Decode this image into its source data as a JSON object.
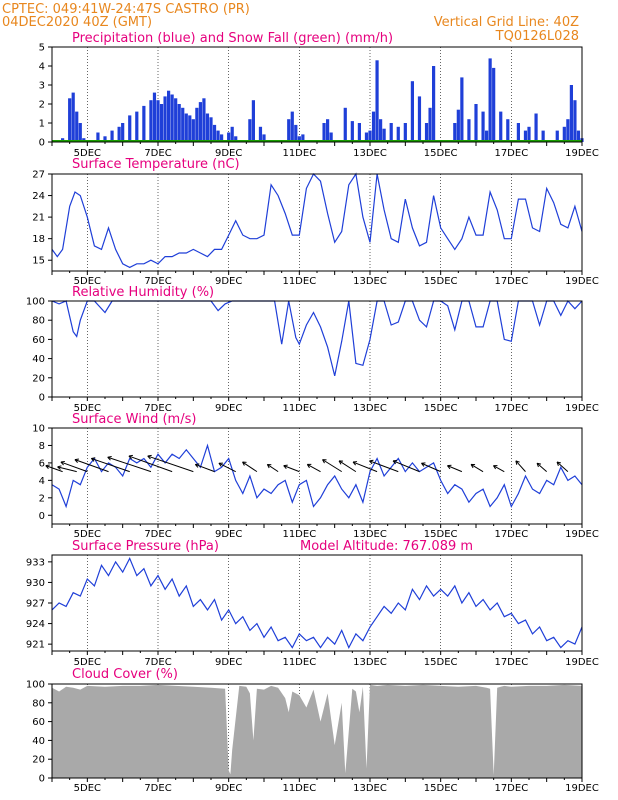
{
  "header": {
    "line1_left": "CPTEC:   049:41W-24:47S  CASTRO (PR)",
    "line2_left": "04DEC2020 40Z (GMT)",
    "line2_right": "Vertical Grid Line: 40Z",
    "line3_right": "TQ0126L028"
  },
  "colors": {
    "header": "#e8871e",
    "title": "#e6007e",
    "series": "#1f3fd8",
    "snow": "#1aa000",
    "cloud": "#a9a9a9",
    "arrow": "#000000"
  },
  "x_axis": {
    "range": [
      4.0,
      19.0
    ],
    "tick_labels": [
      {
        "x": 5,
        "label": "5DEC"
      },
      {
        "x": 7,
        "label": "7DEC"
      },
      {
        "x": 9,
        "label": "9DEC"
      },
      {
        "x": 11,
        "label": "11DEC"
      },
      {
        "x": 13,
        "label": "13DEC"
      },
      {
        "x": 15,
        "label": "15DEC"
      },
      {
        "x": 17,
        "label": "17DEC"
      },
      {
        "x": 19,
        "label": "19DEC"
      }
    ],
    "grid_days": [
      5,
      7,
      9,
      11,
      13,
      15,
      17
    ]
  },
  "chart_data": [
    {
      "id": "precip",
      "type": "bar",
      "title": "Precipitation (blue) and Snow Fall (green) (mm/h)",
      "ylim": [
        0,
        5
      ],
      "yticks": [
        0,
        1,
        2,
        3,
        4,
        5
      ],
      "x": [
        4.3,
        4.5,
        4.6,
        4.7,
        4.8,
        4.9,
        5.3,
        5.5,
        5.7,
        5.9,
        6.0,
        6.2,
        6.4,
        6.6,
        6.8,
        6.9,
        7.0,
        7.1,
        7.2,
        7.3,
        7.4,
        7.5,
        7.6,
        7.7,
        7.8,
        7.9,
        8.0,
        8.1,
        8.2,
        8.3,
        8.4,
        8.5,
        8.6,
        8.7,
        8.8,
        9.0,
        9.1,
        9.2,
        9.6,
        9.7,
        9.9,
        10.0,
        10.7,
        10.8,
        10.9,
        11.0,
        11.1,
        11.7,
        11.8,
        11.9,
        12.3,
        12.5,
        12.7,
        12.9,
        13.0,
        13.1,
        13.2,
        13.3,
        13.4,
        13.6,
        13.8,
        14.0,
        14.2,
        14.4,
        14.6,
        14.7,
        14.8,
        15.4,
        15.5,
        15.6,
        15.8,
        16.0,
        16.2,
        16.3,
        16.4,
        16.5,
        16.7,
        16.9,
        17.2,
        17.4,
        17.5,
        17.7,
        17.9,
        18.3,
        18.5,
        18.6,
        18.7,
        18.8,
        18.9,
        19.0
      ],
      "values": [
        0.2,
        2.3,
        2.6,
        1.6,
        1.0,
        0.2,
        0.5,
        0.3,
        0.6,
        0.8,
        1.0,
        1.4,
        1.6,
        1.9,
        2.2,
        2.6,
        2.2,
        2.0,
        2.4,
        2.7,
        2.5,
        2.3,
        2.0,
        1.8,
        1.5,
        1.4,
        1.2,
        1.8,
        2.1,
        2.3,
        1.5,
        1.3,
        0.9,
        0.6,
        0.4,
        0.5,
        0.8,
        0.3,
        1.2,
        2.2,
        0.8,
        0.4,
        1.2,
        1.6,
        0.9,
        0.3,
        0.4,
        1.0,
        1.2,
        0.5,
        1.8,
        1.1,
        1.0,
        0.5,
        0.6,
        1.6,
        4.3,
        1.2,
        0.7,
        1.0,
        0.8,
        1.0,
        3.2,
        2.4,
        1.0,
        1.8,
        4.0,
        1.0,
        1.7,
        3.4,
        1.2,
        2.0,
        1.6,
        0.6,
        4.4,
        3.9,
        1.6,
        1.2,
        1.0,
        0.6,
        0.8,
        1.5,
        0.6,
        0.6,
        0.8,
        1.2,
        3.0,
        2.2,
        0.6,
        0.2
      ],
      "snow_values": "all 0"
    },
    {
      "id": "temp",
      "type": "line",
      "title": "Surface Temperature (nC)",
      "ylim": [
        13.5,
        27
      ],
      "yticks": [
        15,
        18,
        21,
        24,
        27
      ],
      "x": [
        4.0,
        4.15,
        4.3,
        4.5,
        4.65,
        4.8,
        5.0,
        5.2,
        5.4,
        5.6,
        5.8,
        6.0,
        6.2,
        6.4,
        6.6,
        6.8,
        7.0,
        7.2,
        7.4,
        7.6,
        7.8,
        8.0,
        8.2,
        8.4,
        8.6,
        8.8,
        9.0,
        9.2,
        9.4,
        9.6,
        9.8,
        10.0,
        10.2,
        10.4,
        10.6,
        10.8,
        11.0,
        11.2,
        11.4,
        11.6,
        11.8,
        12.0,
        12.2,
        12.4,
        12.6,
        12.8,
        13.0,
        13.2,
        13.4,
        13.6,
        13.8,
        14.0,
        14.2,
        14.4,
        14.6,
        14.8,
        15.0,
        15.2,
        15.4,
        15.6,
        15.8,
        16.0,
        16.2,
        16.4,
        16.6,
        16.8,
        17.0,
        17.2,
        17.4,
        17.6,
        17.8,
        18.0,
        18.2,
        18.4,
        18.6,
        18.8,
        19.0
      ],
      "y": [
        16.5,
        15.5,
        16.5,
        22.5,
        24.5,
        24.0,
        21.0,
        17.0,
        16.5,
        19.5,
        16.5,
        14.5,
        14.0,
        14.5,
        14.5,
        15.0,
        14.5,
        15.5,
        15.5,
        16.0,
        16.0,
        16.5,
        16.0,
        15.5,
        16.5,
        16.5,
        18.5,
        20.5,
        18.5,
        18.0,
        18.0,
        18.5,
        25.5,
        24.0,
        21.5,
        18.5,
        18.5,
        25.0,
        27.0,
        26.0,
        21.5,
        17.5,
        19.0,
        25.5,
        27.0,
        21.0,
        17.5,
        27.0,
        22.0,
        18.0,
        17.5,
        23.5,
        19.5,
        17.0,
        17.5,
        24.0,
        19.5,
        18.0,
        16.5,
        18.0,
        21.0,
        18.5,
        18.5,
        24.5,
        22.0,
        18.0,
        18.0,
        23.5,
        23.5,
        19.5,
        19.0,
        25.0,
        23.0,
        20.0,
        19.5,
        22.5,
        19.0
      ]
    },
    {
      "id": "rh",
      "type": "line",
      "title": "Relative Humidity (%)",
      "ylim": [
        0,
        100
      ],
      "yticks": [
        0,
        20,
        40,
        60,
        80,
        100
      ],
      "x": [
        4.0,
        4.2,
        4.4,
        4.6,
        4.7,
        4.8,
        5.0,
        5.2,
        5.5,
        5.7,
        6.0,
        6.5,
        7.0,
        7.5,
        8.0,
        8.5,
        8.7,
        8.9,
        9.1,
        9.3,
        9.5,
        9.8,
        10.0,
        10.3,
        10.5,
        10.7,
        10.9,
        11.0,
        11.2,
        11.4,
        11.6,
        11.8,
        12.0,
        12.2,
        12.4,
        12.6,
        12.8,
        13.0,
        13.2,
        13.4,
        13.6,
        13.8,
        14.0,
        14.2,
        14.4,
        14.6,
        14.8,
        15.0,
        15.2,
        15.4,
        15.6,
        15.8,
        16.0,
        16.2,
        16.4,
        16.6,
        16.8,
        17.0,
        17.2,
        17.4,
        17.6,
        17.8,
        18.0,
        18.2,
        18.4,
        18.6,
        18.8,
        19.0
      ],
      "y": [
        100,
        97,
        100,
        68,
        63,
        80,
        100,
        100,
        88,
        100,
        100,
        100,
        100,
        100,
        100,
        100,
        90,
        97,
        100,
        100,
        100,
        100,
        100,
        100,
        55,
        100,
        62,
        55,
        75,
        88,
        73,
        52,
        22,
        58,
        100,
        35,
        33,
        60,
        100,
        100,
        75,
        78,
        100,
        100,
        80,
        73,
        100,
        100,
        95,
        70,
        100,
        100,
        73,
        73,
        100,
        100,
        60,
        58,
        100,
        100,
        100,
        75,
        100,
        100,
        85,
        100,
        92,
        100
      ]
    },
    {
      "id": "wind",
      "type": "line",
      "title": "Surface Wind (m/s)",
      "ylim": [
        -1,
        10
      ],
      "yticks": [
        0,
        2,
        4,
        6,
        8,
        10
      ],
      "x": [
        4.0,
        4.2,
        4.4,
        4.6,
        4.8,
        5.0,
        5.2,
        5.4,
        5.6,
        5.8,
        6.0,
        6.2,
        6.4,
        6.6,
        6.8,
        7.0,
        7.2,
        7.4,
        7.6,
        7.8,
        8.0,
        8.2,
        8.4,
        8.6,
        8.8,
        9.0,
        9.2,
        9.4,
        9.6,
        9.8,
        10.0,
        10.2,
        10.4,
        10.6,
        10.8,
        11.0,
        11.2,
        11.4,
        11.6,
        11.8,
        12.0,
        12.2,
        12.4,
        12.6,
        12.8,
        13.0,
        13.2,
        13.4,
        13.6,
        13.8,
        14.0,
        14.2,
        14.4,
        14.6,
        14.8,
        15.0,
        15.2,
        15.4,
        15.6,
        15.8,
        16.0,
        16.2,
        16.4,
        16.6,
        16.8,
        17.0,
        17.2,
        17.4,
        17.6,
        17.8,
        18.0,
        18.2,
        18.4,
        18.6,
        18.8,
        19.0
      ],
      "y": [
        3.5,
        3.0,
        1.0,
        4.0,
        3.5,
        5.5,
        6.5,
        5.0,
        6.0,
        5.5,
        4.5,
        6.5,
        6.0,
        6.5,
        5.5,
        7.0,
        6.0,
        7.0,
        6.5,
        7.5,
        6.5,
        5.5,
        8.0,
        5.0,
        5.5,
        6.5,
        4.0,
        2.5,
        4.5,
        2.0,
        3.0,
        2.5,
        3.5,
        4.0,
        1.5,
        3.5,
        4.0,
        1.0,
        2.0,
        3.5,
        4.5,
        3.0,
        2.0,
        3.5,
        1.5,
        5.0,
        6.5,
        4.5,
        5.5,
        6.5,
        5.0,
        6.0,
        5.0,
        5.5,
        6.0,
        4.0,
        2.5,
        3.5,
        3.0,
        1.5,
        2.5,
        3.0,
        1.0,
        2.0,
        3.5,
        1.0,
        2.5,
        4.5,
        3.0,
        2.5,
        4.0,
        3.5,
        5.5,
        4.0,
        4.5,
        3.5
      ],
      "vectors": [
        {
          "x": 4.3,
          "y": 5.0,
          "u": -1.4,
          "v": 0.5
        },
        {
          "x": 4.7,
          "y": 5.0,
          "u": -1.6,
          "v": 0.4
        },
        {
          "x": 5.0,
          "y": 5.0,
          "u": -2.2,
          "v": 0.8
        },
        {
          "x": 5.6,
          "y": 5.0,
          "u": -2.8,
          "v": 1.0
        },
        {
          "x": 6.2,
          "y": 5.0,
          "u": -3.2,
          "v": 1.1
        },
        {
          "x": 6.8,
          "y": 5.0,
          "u": -3.6,
          "v": 1.2
        },
        {
          "x": 7.4,
          "y": 5.0,
          "u": -3.6,
          "v": 1.3
        },
        {
          "x": 8.0,
          "y": 5.0,
          "u": -3.8,
          "v": 1.3
        },
        {
          "x": 8.6,
          "y": 5.0,
          "u": -1.6,
          "v": 0.6
        },
        {
          "x": 9.2,
          "y": 5.0,
          "u": -1.4,
          "v": 0.7
        },
        {
          "x": 9.8,
          "y": 5.0,
          "u": -1.2,
          "v": 0.8
        },
        {
          "x": 10.4,
          "y": 5.0,
          "u": -0.9,
          "v": 0.6
        },
        {
          "x": 11.0,
          "y": 5.0,
          "u": -1.3,
          "v": 0.5
        },
        {
          "x": 11.6,
          "y": 5.0,
          "u": -1.1,
          "v": 0.6
        },
        {
          "x": 12.2,
          "y": 5.0,
          "u": -1.6,
          "v": 1.0
        },
        {
          "x": 12.6,
          "y": 5.0,
          "u": -1.4,
          "v": 0.9
        },
        {
          "x": 13.2,
          "y": 5.0,
          "u": -2.0,
          "v": 0.8
        },
        {
          "x": 13.8,
          "y": 5.0,
          "u": -2.4,
          "v": 0.9
        },
        {
          "x": 14.4,
          "y": 5.0,
          "u": -2.2,
          "v": 0.9
        },
        {
          "x": 15.0,
          "y": 5.0,
          "u": -1.6,
          "v": 0.7
        },
        {
          "x": 15.6,
          "y": 5.0,
          "u": -1.2,
          "v": 0.5
        },
        {
          "x": 16.2,
          "y": 5.0,
          "u": -1.0,
          "v": 0.6
        },
        {
          "x": 16.8,
          "y": 5.0,
          "u": -0.9,
          "v": 0.5
        },
        {
          "x": 17.4,
          "y": 5.0,
          "u": -0.8,
          "v": 0.9
        },
        {
          "x": 18.0,
          "y": 5.0,
          "u": -0.8,
          "v": 0.7
        },
        {
          "x": 18.6,
          "y": 5.0,
          "u": -0.9,
          "v": 0.8
        }
      ]
    },
    {
      "id": "pres",
      "type": "line",
      "title": "Surface Pressure (hPa)",
      "subtitle": "Model Altitude: 767.089 m",
      "ylim": [
        920,
        934
      ],
      "yticks": [
        921,
        924,
        927,
        930,
        933
      ],
      "x": [
        4.0,
        4.2,
        4.4,
        4.6,
        4.8,
        5.0,
        5.2,
        5.4,
        5.6,
        5.8,
        6.0,
        6.2,
        6.4,
        6.6,
        6.8,
        7.0,
        7.2,
        7.4,
        7.6,
        7.8,
        8.0,
        8.2,
        8.4,
        8.6,
        8.8,
        9.0,
        9.2,
        9.4,
        9.6,
        9.8,
        10.0,
        10.2,
        10.4,
        10.6,
        10.8,
        11.0,
        11.2,
        11.4,
        11.6,
        11.8,
        12.0,
        12.2,
        12.4,
        12.6,
        12.8,
        13.0,
        13.2,
        13.4,
        13.6,
        13.8,
        14.0,
        14.2,
        14.4,
        14.6,
        14.8,
        15.0,
        15.2,
        15.4,
        15.6,
        15.8,
        16.0,
        16.2,
        16.4,
        16.6,
        16.8,
        17.0,
        17.2,
        17.4,
        17.6,
        17.8,
        18.0,
        18.2,
        18.4,
        18.6,
        18.8,
        19.0
      ],
      "y": [
        926.0,
        927.0,
        926.5,
        928.5,
        928.0,
        930.5,
        929.5,
        932.5,
        931.0,
        933.0,
        931.5,
        933.5,
        931.0,
        932.0,
        929.5,
        931.0,
        929.0,
        930.5,
        928.0,
        929.5,
        926.5,
        927.5,
        926.0,
        927.5,
        924.5,
        926.0,
        924.0,
        925.0,
        923.0,
        924.0,
        922.0,
        923.5,
        921.5,
        922.0,
        920.5,
        922.5,
        921.5,
        922.0,
        920.5,
        922.0,
        921.0,
        923.0,
        920.5,
        922.5,
        921.5,
        923.5,
        925.0,
        926.5,
        925.5,
        927.0,
        926.0,
        929.0,
        927.5,
        929.5,
        928.0,
        929.0,
        928.0,
        929.5,
        927.0,
        928.5,
        926.5,
        927.5,
        926.0,
        927.0,
        925.0,
        925.5,
        924.0,
        924.5,
        922.5,
        923.5,
        921.5,
        922.0,
        920.5,
        921.5,
        921.0,
        923.5
      ]
    },
    {
      "id": "cloud",
      "type": "area",
      "title": "Cloud Cover (%)",
      "ylim": [
        0,
        100
      ],
      "yticks": [
        0,
        20,
        40,
        60,
        80,
        100
      ],
      "x": [
        4.0,
        4.1,
        4.2,
        4.4,
        4.6,
        4.8,
        5.0,
        5.5,
        6.0,
        6.5,
        7.0,
        7.5,
        8.0,
        8.5,
        8.9,
        9.0,
        9.05,
        9.1,
        9.3,
        9.5,
        9.6,
        9.7,
        9.8,
        10.0,
        10.2,
        10.4,
        10.6,
        10.7,
        10.8,
        11.0,
        11.2,
        11.4,
        11.6,
        11.8,
        12.0,
        12.2,
        12.3,
        12.5,
        12.6,
        12.7,
        12.8,
        12.9,
        13.0,
        13.2,
        13.5,
        14.0,
        14.5,
        15.0,
        15.5,
        16.0,
        16.3,
        16.4,
        16.5,
        16.6,
        16.7,
        16.8,
        17.0,
        17.5,
        18.0,
        18.5,
        19.0
      ],
      "y": [
        96,
        94,
        92,
        97,
        96,
        94,
        98,
        97,
        98,
        98,
        99,
        98,
        97,
        96,
        95,
        8,
        4,
        30,
        98,
        97,
        90,
        40,
        95,
        94,
        98,
        96,
        85,
        70,
        92,
        88,
        75,
        94,
        60,
        90,
        35,
        80,
        5,
        95,
        92,
        70,
        97,
        10,
        99,
        98,
        99,
        98,
        99,
        98,
        97,
        98,
        96,
        95,
        3,
        96,
        97,
        98,
        97,
        98,
        98,
        99,
        98
      ]
    }
  ]
}
